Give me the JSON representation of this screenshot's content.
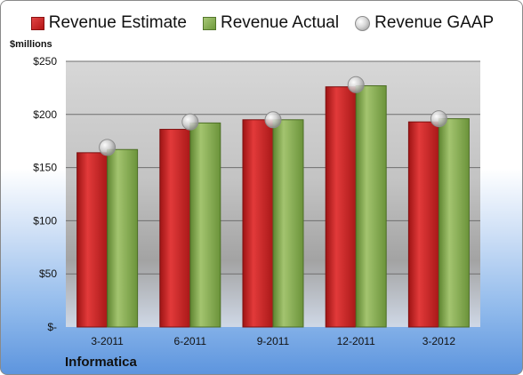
{
  "chart_data": {
    "type": "bar",
    "categories": [
      "3-2011",
      "6-2011",
      "9-2011",
      "12-2011",
      "3-2012"
    ],
    "series": [
      {
        "name": "Revenue Estimate",
        "type": "bar",
        "color": "#c91f1f",
        "values": [
          164,
          186,
          195,
          226,
          193
        ]
      },
      {
        "name": "Revenue Actual",
        "type": "bar",
        "color": "#86ad4d",
        "values": [
          167,
          192,
          195,
          227,
          196
        ]
      },
      {
        "name": "Revenue GAAP",
        "type": "marker",
        "color": "#c0c0c0",
        "values": [
          169,
          193,
          195,
          228,
          196
        ]
      }
    ],
    "ylabel": "$millions",
    "ylim": [
      0,
      250
    ],
    "yticks": [
      0,
      50,
      100,
      150,
      200,
      250
    ],
    "ytick_labels": [
      "$-",
      "$50",
      "$100",
      "$150",
      "$200",
      "$250"
    ],
    "grid": true,
    "legend": "top",
    "company": "Informatica"
  }
}
